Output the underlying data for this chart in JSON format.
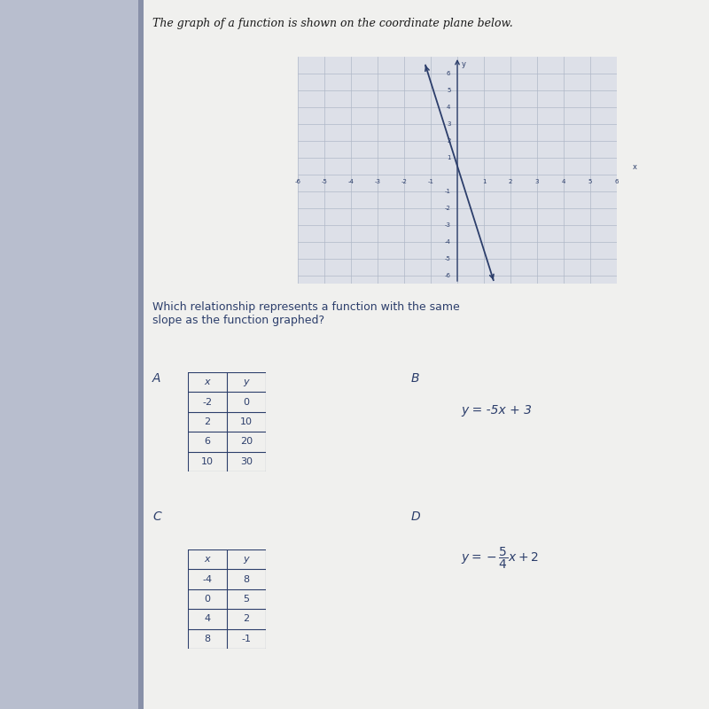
{
  "title": "The graph of a function is shown on the coordinate plane below.",
  "question": "Which relationship represents a function with the same\nslope as the function graphed?",
  "graph_xlim": [
    -6,
    6
  ],
  "graph_ylim": [
    -6.5,
    7
  ],
  "line_slope": -5.0,
  "line_intercept": 0.5,
  "line_color": "#2c3e6b",
  "bg_color_left": "#c8cdd8",
  "bg_color_right": "#d0d4de",
  "graph_bg": "#dde0e8",
  "label_A": "A",
  "label_B": "B",
  "label_C": "C",
  "label_D": "D",
  "table_A_headers": [
    "x",
    "y"
  ],
  "table_A_data": [
    [
      -2,
      0
    ],
    [
      2,
      10
    ],
    [
      6,
      20
    ],
    [
      10,
      30
    ]
  ],
  "eq_B": "y = -5x + 3",
  "table_C_headers": [
    "x",
    "y"
  ],
  "table_C_data": [
    [
      -4,
      8
    ],
    [
      0,
      5
    ],
    [
      4,
      2
    ],
    [
      8,
      -1
    ]
  ],
  "text_color": "#2c3e6b",
  "table_border_color": "#2c3e6b",
  "axis_color": "#2c3e6b",
  "grid_color": "#b0b8c8",
  "page_bg": "#e8eaf0"
}
